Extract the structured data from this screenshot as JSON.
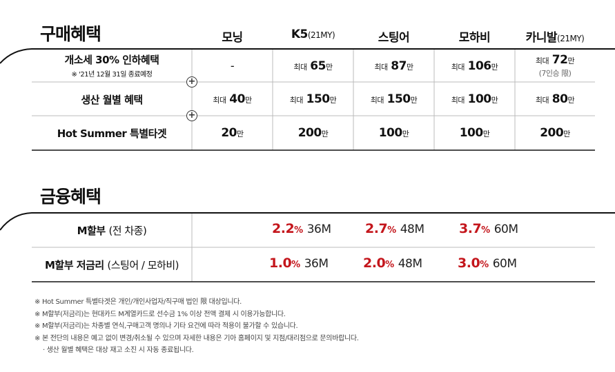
{
  "purchase": {
    "title": "구매혜택",
    "columns": [
      {
        "name": "모닝",
        "suffix": ""
      },
      {
        "name": "K5",
        "suffix": "(21MY)"
      },
      {
        "name": "스팅어",
        "suffix": ""
      },
      {
        "name": "모하비",
        "suffix": ""
      },
      {
        "name": "카니발",
        "suffix": "(21MY)"
      }
    ],
    "rows": [
      {
        "label": "개소세 30% 인하혜택",
        "sublabel": "※ '21년 12월 31일 종료예정",
        "cells": [
          {
            "prefix": "",
            "value": "-",
            "unit": "",
            "note": ""
          },
          {
            "prefix": "최대",
            "value": "65",
            "unit": "만",
            "note": ""
          },
          {
            "prefix": "최대",
            "value": "87",
            "unit": "만",
            "note": ""
          },
          {
            "prefix": "최대",
            "value": "106",
            "unit": "만",
            "note": ""
          },
          {
            "prefix": "최대",
            "value": "72",
            "unit": "만",
            "note": "(7인승 限)"
          }
        ]
      },
      {
        "label": "생산 월별 혜택",
        "sublabel": "",
        "cells": [
          {
            "prefix": "최대",
            "value": "40",
            "unit": "만",
            "note": ""
          },
          {
            "prefix": "최대",
            "value": "150",
            "unit": "만",
            "note": ""
          },
          {
            "prefix": "최대",
            "value": "150",
            "unit": "만",
            "note": ""
          },
          {
            "prefix": "최대",
            "value": "100",
            "unit": "만",
            "note": ""
          },
          {
            "prefix": "최대",
            "value": "80",
            "unit": "만",
            "note": ""
          }
        ]
      },
      {
        "label": "Hot Summer 특별타겟",
        "sublabel": "",
        "cells": [
          {
            "prefix": "",
            "value": "20",
            "unit": "만",
            "note": ""
          },
          {
            "prefix": "",
            "value": "200",
            "unit": "만",
            "note": ""
          },
          {
            "prefix": "",
            "value": "100",
            "unit": "만",
            "note": ""
          },
          {
            "prefix": "",
            "value": "100",
            "unit": "만",
            "note": ""
          },
          {
            "prefix": "",
            "value": "200",
            "unit": "만",
            "note": ""
          }
        ]
      }
    ],
    "plus_symbol": "+"
  },
  "finance": {
    "title": "금융혜택",
    "rows": [
      {
        "label": "M할부",
        "label_detail": "(전 차종)",
        "rates": [
          {
            "rate": "2.2",
            "sign": "%",
            "term": "36M"
          },
          {
            "rate": "2.7",
            "sign": "%",
            "term": "48M"
          },
          {
            "rate": "3.7",
            "sign": "%",
            "term": "60M"
          }
        ]
      },
      {
        "label": "M할부 저금리",
        "label_detail": "(스팅어 / 모하비)",
        "rates": [
          {
            "rate": "1.0",
            "sign": "%",
            "term": "36M"
          },
          {
            "rate": "2.0",
            "sign": "%",
            "term": "48M"
          },
          {
            "rate": "3.0",
            "sign": "%",
            "term": "60M"
          }
        ]
      }
    ]
  },
  "notes": [
    "※ Hot Summer 특별타겟은 개인/개인사업자/직구매 법인 限 대상입니다.",
    "※ M할부(저금리)는 현대카드 M계열카드로 선수금 1% 이상 전액 결제 시 이용가능합니다.",
    "※ M할부(저금리)는 차종별 연식,구매고객 명의나 기타 요건에 따라 적용이 불가할 수 있습니다.",
    "※ 본 전단의 내용은 예고 없이 변경/취소될 수 있으며 자세한 내용은 기아 홈페이지 및 지점/대리점으로 문의바랍니다.",
    "· 생산 월별 혜택은 대상 재고 소진 시 자동 종료됩니다."
  ],
  "colors": {
    "accent_red": "#c4161c",
    "line": "#111111",
    "divider": "#bbbbbb"
  }
}
